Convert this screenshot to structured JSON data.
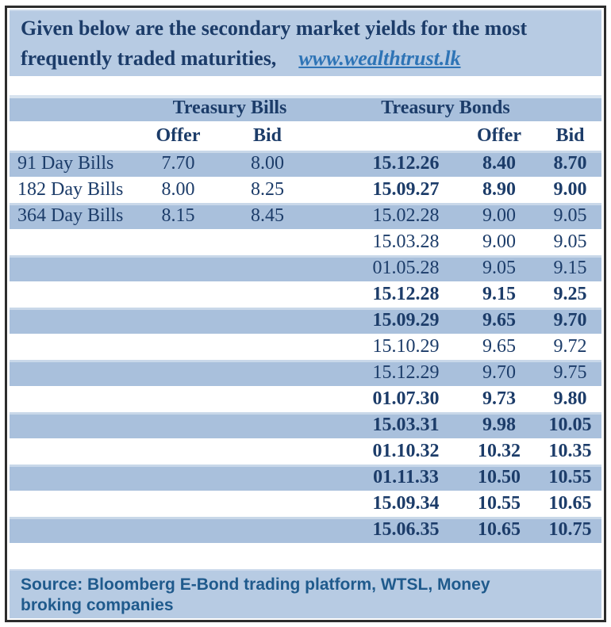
{
  "intro": {
    "line1": "Given below are the secondary market yields for the most",
    "line2": "frequently traded maturities,",
    "link": "www.wealthtrust.lk"
  },
  "table": {
    "bills_header": "Treasury Bills",
    "bonds_header": "Treasury Bonds",
    "offer_label": "Offer",
    "bid_label": "Bid",
    "rows": [
      {
        "bill": "91 Day Bills",
        "bill_offer": "7.70",
        "bill_bid": "8.00",
        "bond": "15.12.26",
        "bond_offer": "8.40",
        "bond_bid": "8.70",
        "bond_bold": true
      },
      {
        "bill": "182 Day Bills",
        "bill_offer": "8.00",
        "bill_bid": "8.25",
        "bond": "15.09.27",
        "bond_offer": "8.90",
        "bond_bid": "9.00",
        "bond_bold": true
      },
      {
        "bill": "364 Day Bills",
        "bill_offer": "8.15",
        "bill_bid": "8.45",
        "bond": "15.02.28",
        "bond_offer": "9.00",
        "bond_bid": "9.05",
        "bond_bold": false
      },
      {
        "bill": "",
        "bill_offer": "",
        "bill_bid": "",
        "bond": "15.03.28",
        "bond_offer": "9.00",
        "bond_bid": "9.05",
        "bond_bold": false
      },
      {
        "bill": "",
        "bill_offer": "",
        "bill_bid": "",
        "bond": "01.05.28",
        "bond_offer": "9.05",
        "bond_bid": "9.15",
        "bond_bold": false
      },
      {
        "bill": "",
        "bill_offer": "",
        "bill_bid": "",
        "bond": "15.12.28",
        "bond_offer": "9.15",
        "bond_bid": "9.25",
        "bond_bold": true
      },
      {
        "bill": "",
        "bill_offer": "",
        "bill_bid": "",
        "bond": "15.09.29",
        "bond_offer": "9.65",
        "bond_bid": "9.70",
        "bond_bold": true
      },
      {
        "bill": "",
        "bill_offer": "",
        "bill_bid": "",
        "bond": "15.10.29",
        "bond_offer": "9.65",
        "bond_bid": "9.72",
        "bond_bold": false
      },
      {
        "bill": "",
        "bill_offer": "",
        "bill_bid": "",
        "bond": "15.12.29",
        "bond_offer": "9.70",
        "bond_bid": "9.75",
        "bond_bold": false
      },
      {
        "bill": "",
        "bill_offer": "",
        "bill_bid": "",
        "bond": "01.07.30",
        "bond_offer": "9.73",
        "bond_bid": "9.80",
        "bond_bold": true
      },
      {
        "bill": "",
        "bill_offer": "",
        "bill_bid": "",
        "bond": "15.03.31",
        "bond_offer": "9.98",
        "bond_bid": "10.05",
        "bond_bold": true
      },
      {
        "bill": "",
        "bill_offer": "",
        "bill_bid": "",
        "bond": "01.10.32",
        "bond_offer": "10.32",
        "bond_bid": "10.35",
        "bond_bold": true
      },
      {
        "bill": "",
        "bill_offer": "",
        "bill_bid": "",
        "bond": "01.11.33",
        "bond_offer": "10.50",
        "bond_bid": "10.55",
        "bond_bold": true
      },
      {
        "bill": "",
        "bill_offer": "",
        "bill_bid": "",
        "bond": "15.09.34",
        "bond_offer": "10.55",
        "bond_bid": "10.65",
        "bond_bold": true
      },
      {
        "bill": "",
        "bill_offer": "",
        "bill_bid": "",
        "bond": "15.06.35",
        "bond_offer": "10.65",
        "bond_bid": "10.75",
        "bond_bold": true
      }
    ]
  },
  "source": "Source: Bloomberg E-Bond trading platform, WTSL, Money broking companies",
  "colors": {
    "band_blue": "#b7cbe3",
    "row_blue": "#a9c0dc",
    "text_navy": "#1c3c69",
    "link_blue": "#2e74b6",
    "source_blue": "#1f5a8c",
    "border_dark": "#2d2d2d"
  }
}
